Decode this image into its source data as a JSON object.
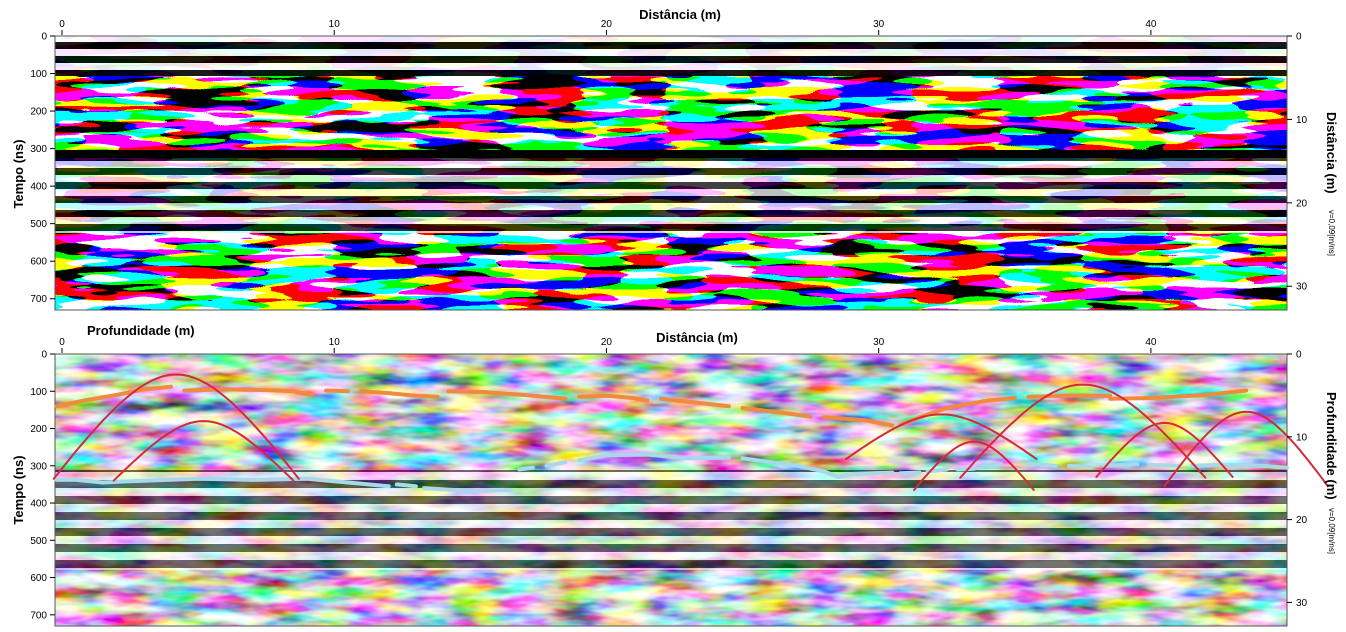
{
  "chart_data": [
    {
      "type": "heatmap",
      "panel": "top",
      "title": "Distância (m)",
      "xlabel": "Distância (m)",
      "ylabel": "Tempo (ns)",
      "y2label": "Distância (m)",
      "y2unit": "v=0,09[m/ns]",
      "xlim": [
        0,
        45
      ],
      "ylim": [
        0,
        730
      ],
      "y2lim": [
        0,
        32.85
      ],
      "xticks": [
        0,
        10,
        20,
        30,
        40
      ],
      "yticks": [
        0,
        100,
        200,
        300,
        400,
        500,
        600,
        700
      ],
      "y2ticks": [
        0,
        10,
        20,
        30
      ],
      "colormap": [
        "#000000",
        "#ffffff"
      ],
      "grid": false,
      "x_tick_labels": [
        "0",
        "10",
        "20",
        "30",
        "40"
      ],
      "y_tick_labels": [
        "0",
        "100",
        "200",
        "300",
        "400",
        "500",
        "600",
        "700"
      ],
      "y2_tick_labels": [
        "0",
        "10",
        "20",
        "30"
      ]
    },
    {
      "type": "heatmap",
      "panel": "bottom",
      "title": "Distância (m)",
      "corner_label": "Profundidade (m)",
      "xlabel": "Distância (m)",
      "ylabel": "Tempo (ns)",
      "y2label": "Profundidade (m)",
      "y2unit": "v=0,09[m/ns]",
      "xlim": [
        0,
        45
      ],
      "ylim": [
        0,
        730
      ],
      "y2lim": [
        0,
        32.85
      ],
      "xticks": [
        0,
        10,
        20,
        30,
        40
      ],
      "yticks": [
        0,
        100,
        200,
        300,
        400,
        500,
        600,
        700
      ],
      "y2ticks": [
        0,
        10,
        20,
        30
      ],
      "colormap": [
        "#000000",
        "#ffffff"
      ],
      "grid": false,
      "x_tick_labels": [
        "0",
        "10",
        "20",
        "30",
        "40"
      ],
      "y_tick_labels": [
        "0",
        "100",
        "200",
        "300",
        "400",
        "500",
        "600",
        "700"
      ],
      "y2_tick_labels": [
        "0",
        "10",
        "20",
        "30"
      ],
      "interpretation": {
        "colors": {
          "upper_reflector": "#f08a3c",
          "lower_reflector": "#a8d8ea",
          "hyperbola": "#d42a3a"
        },
        "upper_reflector_segments": [
          [
            [
              -0.2,
              140
            ],
            [
              0.8,
              125
            ],
            [
              2,
              110
            ],
            [
              3,
              95
            ],
            [
              4,
              88
            ]
          ],
          [
            [
              4.5,
              98
            ],
            [
              6,
              95
            ],
            [
              7.5,
              97
            ],
            [
              8.5,
              100
            ],
            [
              9.2,
              110
            ]
          ],
          [
            [
              9.7,
              98
            ],
            [
              10.5,
              100
            ]
          ],
          [
            [
              11,
              100
            ],
            [
              12,
              105
            ],
            [
              13,
              112
            ],
            [
              13.8,
              115
            ]
          ],
          [
            [
              14.2,
              100
            ],
            [
              15.5,
              102
            ],
            [
              17,
              110
            ],
            [
              18.5,
              120
            ]
          ],
          [
            [
              19,
              115
            ],
            [
              20,
              112
            ],
            [
              21,
              118
            ],
            [
              21.5,
              125
            ]
          ],
          [
            [
              22,
              120
            ],
            [
              23,
              128
            ],
            [
              24.5,
              140
            ]
          ],
          [
            [
              25,
              145
            ],
            [
              26.5,
              158
            ],
            [
              27.5,
              168
            ]
          ],
          [
            [
              28,
              170
            ],
            [
              29.5,
              178
            ],
            [
              30.5,
              192
            ]
          ],
          [
            [
              30.8,
              190
            ],
            [
              31.5,
              170
            ],
            [
              32.5,
              145
            ],
            [
              34,
              125
            ],
            [
              35,
              118
            ]
          ],
          [
            [
              35.5,
              115
            ],
            [
              37,
              112
            ],
            [
              38.5,
              112
            ]
          ],
          [
            [
              38.5,
              120
            ],
            [
              40,
              118
            ],
            [
              42,
              110
            ],
            [
              43.5,
              98
            ]
          ]
        ],
        "lower_reflector_segments": [
          [
            [
              -0.2,
              338
            ],
            [
              0.5,
              338
            ],
            [
              1.5,
              345
            ]
          ],
          [
            [
              1.5,
              345
            ],
            [
              3,
              340
            ],
            [
              5,
              335
            ],
            [
              7,
              338
            ],
            [
              9,
              335
            ],
            [
              10.5,
              345
            ],
            [
              12,
              355
            ]
          ],
          [
            [
              12.3,
              350
            ],
            [
              13,
              355
            ]
          ],
          [
            [
              13.3,
              360
            ],
            [
              15,
              368
            ],
            [
              16.5,
              365
            ]
          ],
          [
            [
              16.8,
              310
            ],
            [
              17.3,
              305
            ]
          ],
          [
            [
              17.8,
              300
            ],
            [
              18.5,
              290
            ]
          ],
          [
            [
              19,
              285
            ],
            [
              20,
              272
            ],
            [
              21.5,
              270
            ],
            [
              23,
              280
            ],
            [
              24.5,
              278
            ]
          ],
          [
            [
              25,
              280
            ],
            [
              26,
              290
            ],
            [
              27,
              300
            ],
            [
              28,
              315
            ],
            [
              28.5,
              330
            ],
            [
              29,
              322
            ],
            [
              30.5,
              318
            ]
          ],
          [
            [
              30.8,
              320
            ],
            [
              31.5,
              318
            ]
          ],
          [
            [
              31.8,
              315
            ],
            [
              32.5,
              310
            ]
          ],
          [
            [
              32.9,
              310
            ],
            [
              33.5,
              308
            ]
          ],
          [
            [
              33.8,
              300
            ],
            [
              34.5,
              296
            ]
          ],
          [
            [
              35.5,
              295
            ],
            [
              36.5,
              300
            ]
          ],
          [
            [
              37,
              300
            ],
            [
              37.8,
              305
            ]
          ],
          [
            [
              38.3,
              300
            ],
            [
              39.5,
              296
            ]
          ],
          [
            [
              40,
              298
            ],
            [
              41,
              300
            ]
          ],
          [
            [
              41.5,
              300
            ],
            [
              42.5,
              298
            ],
            [
              44,
              300
            ],
            [
              45,
              305
            ]
          ]
        ],
        "hyperbolas": [
          {
            "apex_x": 4.2,
            "apex_t": 55,
            "half_width": 4.5,
            "depth": 280
          },
          {
            "apex_x": 5.2,
            "apex_t": 180,
            "half_width": 3.3,
            "depth": 160
          },
          {
            "apex_x": 32.3,
            "apex_t": 162,
            "half_width": 3.5,
            "depth": 120
          },
          {
            "apex_x": 33.5,
            "apex_t": 235,
            "half_width": 2.2,
            "depth": 130
          },
          {
            "apex_x": 37.5,
            "apex_t": 82,
            "half_width": 4.5,
            "depth": 250
          },
          {
            "apex_x": 40.5,
            "apex_t": 185,
            "half_width": 2.5,
            "depth": 145
          },
          {
            "apex_x": 43.5,
            "apex_t": 155,
            "half_width": 3,
            "depth": 200
          }
        ]
      }
    }
  ]
}
